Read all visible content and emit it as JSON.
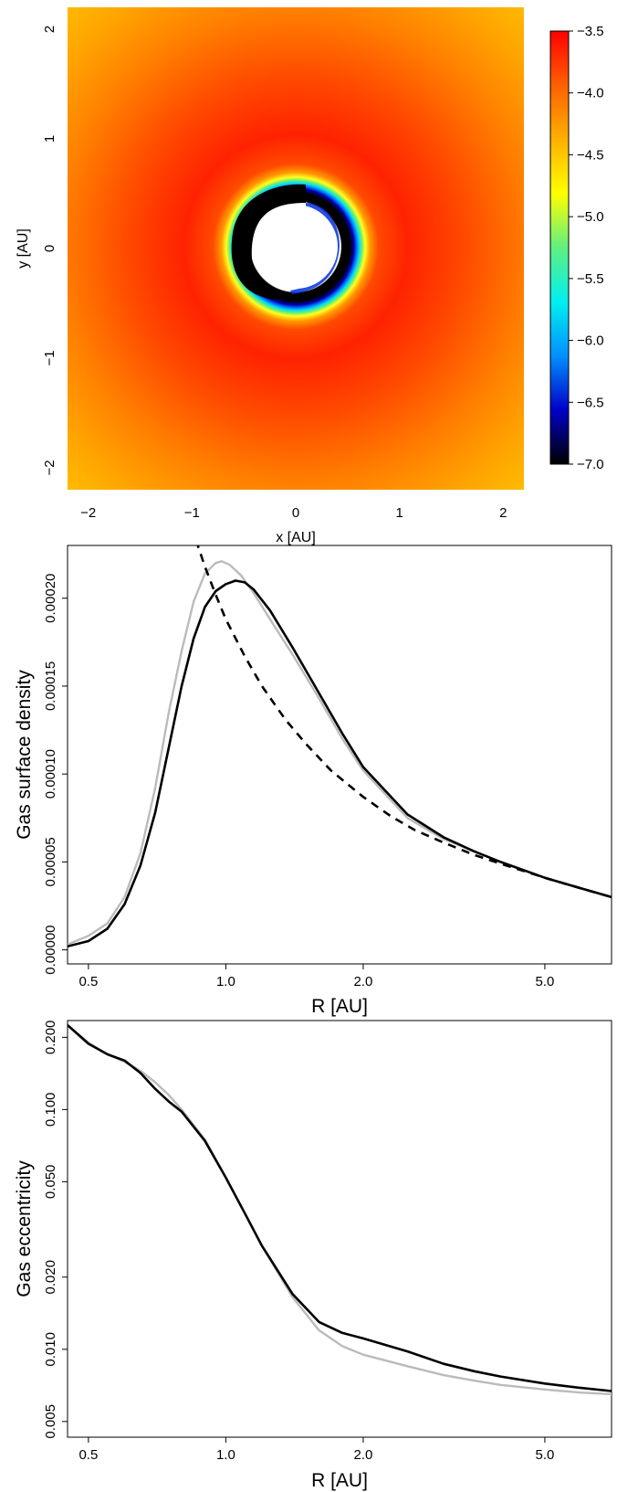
{
  "chart_data": [
    {
      "type": "heatmap",
      "xlabel": "x [AU]",
      "ylabel": "y [AU]",
      "xlim": [
        -2.2,
        2.2
      ],
      "ylim": [
        -2.2,
        2.2
      ],
      "x_ticks": [
        {
          "value": -2,
          "label": "−2"
        },
        {
          "value": -1,
          "label": "−1"
        },
        {
          "value": 0,
          "label": "0"
        },
        {
          "value": 1,
          "label": "1"
        },
        {
          "value": 2,
          "label": "2"
        }
      ],
      "y_ticks": [
        {
          "value": -2,
          "label": "−2"
        },
        {
          "value": -1,
          "label": "−1"
        },
        {
          "value": 0,
          "label": "0"
        },
        {
          "value": 1,
          "label": "1"
        },
        {
          "value": 2,
          "label": "2"
        }
      ],
      "inner_hole_radius_au": 0.41,
      "peak_radius_au": 1.05,
      "colorbar": {
        "range": [
          -7.0,
          -3.5
        ],
        "ticks": [
          {
            "value": -3.5,
            "label": "−3.5"
          },
          {
            "value": -4.0,
            "label": "−4.0"
          },
          {
            "value": -4.5,
            "label": "−4.5"
          },
          {
            "value": -5.0,
            "label": "−5.0"
          },
          {
            "value": -5.5,
            "label": "−5.5"
          },
          {
            "value": -6.0,
            "label": "−6.0"
          },
          {
            "value": -6.5,
            "label": "−6.5"
          },
          {
            "value": -7.0,
            "label": "−7.0"
          }
        ],
        "colors": [
          "#000000",
          "#0000c8",
          "#0090ff",
          "#00f0f0",
          "#60f080",
          "#ffff00",
          "#ffb000",
          "#ff6000",
          "#ff0000"
        ]
      }
    },
    {
      "type": "line",
      "xlabel": "R [AU]",
      "ylabel": "Gas surface density",
      "x_scale": "log",
      "xlim": [
        0.45,
        7.0
      ],
      "ylim": [
        -8e-06,
        0.00023
      ],
      "x_ticks": [
        {
          "value": 0.5,
          "label": "0.5"
        },
        {
          "value": 1.0,
          "label": "1.0"
        },
        {
          "value": 2.0,
          "label": "2.0"
        },
        {
          "value": 5.0,
          "label": "5.0"
        }
      ],
      "y_ticks": [
        {
          "value": 0.0,
          "label": "0.00000"
        },
        {
          "value": 5e-05,
          "label": "0.00005"
        },
        {
          "value": 0.0001,
          "label": "0.00010"
        },
        {
          "value": 0.00015,
          "label": "0.00015"
        },
        {
          "value": 0.0002,
          "label": "0.00020"
        }
      ],
      "series": [
        {
          "style": "solid",
          "color": "#bbbbbb",
          "x": [
            0.45,
            0.5,
            0.55,
            0.6,
            0.65,
            0.7,
            0.75,
            0.8,
            0.85,
            0.9,
            0.95,
            0.98,
            1.02,
            1.08,
            1.15,
            1.25,
            1.4,
            1.6,
            1.8,
            2.0,
            2.5,
            3.0,
            3.5,
            4.0,
            5.0,
            6.0,
            7.0
          ],
          "y": [
            3e-06,
            8e-06,
            1.5e-05,
            3e-05,
            5.5e-05,
            9.2e-05,
            0.000135,
            0.00017,
            0.000198,
            0.000214,
            0.00022,
            0.000221,
            0.000219,
            0.000213,
            0.000203,
            0.000188,
            0.000168,
            0.000143,
            0.00012,
            0.000102,
            7.5e-05,
            6.3e-05,
            5.6e-05,
            5e-05,
            4.1e-05,
            3.5e-05,
            3e-05
          ]
        },
        {
          "style": "solid",
          "color": "#000000",
          "x": [
            0.45,
            0.5,
            0.55,
            0.6,
            0.65,
            0.7,
            0.75,
            0.8,
            0.85,
            0.9,
            0.95,
            1.0,
            1.05,
            1.1,
            1.15,
            1.25,
            1.4,
            1.6,
            1.8,
            2.0,
            2.5,
            3.0,
            3.5,
            4.0,
            5.0,
            6.0,
            7.0
          ],
          "y": [
            2e-06,
            5e-06,
            1.2e-05,
            2.6e-05,
            4.8e-05,
            7.8e-05,
            0.000115,
            0.00015,
            0.000177,
            0.000195,
            0.000204,
            0.000208,
            0.00021,
            0.000209,
            0.000205,
            0.000193,
            0.000172,
            0.000146,
            0.000123,
            0.000104,
            7.7e-05,
            6.4e-05,
            5.6e-05,
            5e-05,
            4.1e-05,
            3.5e-05,
            3e-05
          ]
        },
        {
          "style": "dashed",
          "color": "#000000",
          "x": [
            0.86,
            0.9,
            0.95,
            1.0,
            1.1,
            1.2,
            1.35,
            1.5,
            1.7,
            2.0,
            2.3,
            2.6,
            3.0,
            3.5,
            4.0,
            5.0,
            6.0,
            7.0
          ],
          "y": [
            0.000233,
            0.000218,
            0.000202,
            0.000188,
            0.000167,
            0.00015,
            0.000131,
            0.000117,
            0.000102,
            8.7e-05,
            7.6e-05,
            6.8e-05,
            6.1e-05,
            5.4e-05,
            4.9e-05,
            4.1e-05,
            3.5e-05,
            3e-05
          ]
        }
      ]
    },
    {
      "type": "line",
      "xlabel": "R [AU]",
      "ylabel": "Gas eccentricity",
      "x_scale": "log",
      "y_scale": "log",
      "xlim": [
        0.45,
        7.0
      ],
      "ylim": [
        0.0043,
        0.235
      ],
      "x_ticks": [
        {
          "value": 0.5,
          "label": "0.5"
        },
        {
          "value": 1.0,
          "label": "1.0"
        },
        {
          "value": 2.0,
          "label": "2.0"
        },
        {
          "value": 5.0,
          "label": "5.0"
        }
      ],
      "y_ticks": [
        {
          "value": 0.005,
          "label": "0.005"
        },
        {
          "value": 0.01,
          "label": "0.010"
        },
        {
          "value": 0.02,
          "label": "0.020"
        },
        {
          "value": 0.05,
          "label": "0.050"
        },
        {
          "value": 0.1,
          "label": "0.100"
        },
        {
          "value": 0.2,
          "label": "0.200"
        }
      ],
      "series": [
        {
          "style": "solid",
          "color": "#bbbbbb",
          "x": [
            0.45,
            0.5,
            0.55,
            0.6,
            0.65,
            0.7,
            0.75,
            0.8,
            0.9,
            1.0,
            1.1,
            1.2,
            1.4,
            1.6,
            1.8,
            2.0,
            2.5,
            3.0,
            3.5,
            4.0,
            5.0,
            6.0,
            7.0
          ],
          "y": [
            0.225,
            0.19,
            0.17,
            0.158,
            0.145,
            0.13,
            0.115,
            0.1,
            0.075,
            0.052,
            0.037,
            0.027,
            0.0165,
            0.012,
            0.0103,
            0.0095,
            0.0085,
            0.0078,
            0.0074,
            0.0071,
            0.0068,
            0.0066,
            0.0065
          ]
        },
        {
          "style": "solid",
          "color": "#000000",
          "x": [
            0.45,
            0.5,
            0.55,
            0.6,
            0.65,
            0.7,
            0.75,
            0.8,
            0.9,
            1.0,
            1.1,
            1.2,
            1.4,
            1.6,
            1.8,
            2.0,
            2.5,
            3.0,
            3.5,
            4.0,
            5.0,
            6.0,
            7.0
          ],
          "y": [
            0.225,
            0.188,
            0.17,
            0.16,
            0.142,
            0.122,
            0.108,
            0.098,
            0.074,
            0.052,
            0.037,
            0.027,
            0.017,
            0.013,
            0.0117,
            0.0111,
            0.0098,
            0.0087,
            0.0081,
            0.0077,
            0.0072,
            0.0069,
            0.0067
          ]
        }
      ]
    }
  ]
}
